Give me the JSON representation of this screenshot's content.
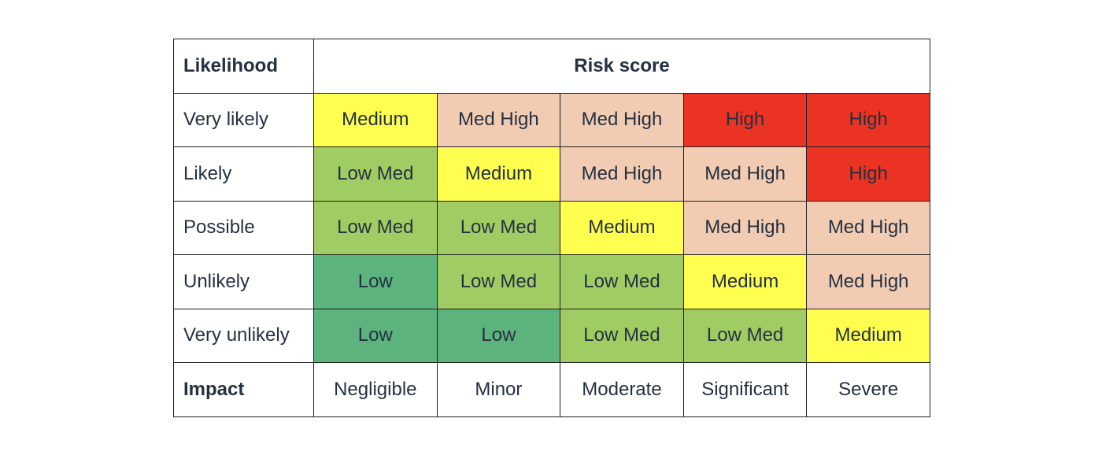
{
  "header": {
    "likelihood_label": "Likelihood",
    "risk_score_label": "Risk score"
  },
  "colors": {
    "Low": "#5db37e",
    "Low Med": "#a0cc63",
    "Medium": "#ffff4f",
    "Med High": "#f1ccb2",
    "High": "#eb3324"
  },
  "rows": [
    {
      "likelihood": "Very likely",
      "cells": [
        "Medium",
        "Med High",
        "Med High",
        "High",
        "High"
      ]
    },
    {
      "likelihood": "Likely",
      "cells": [
        "Low Med",
        "Medium",
        "Med High",
        "Med High",
        "High"
      ]
    },
    {
      "likelihood": "Possible",
      "cells": [
        "Low Med",
        "Low Med",
        "Medium",
        "Med High",
        "Med High"
      ]
    },
    {
      "likelihood": "Unlikely",
      "cells": [
        "Low",
        "Low Med",
        "Low Med",
        "Medium",
        "Med High"
      ]
    },
    {
      "likelihood": "Very unlikely",
      "cells": [
        "Low",
        "Low",
        "Low Med",
        "Low Med",
        "Medium"
      ]
    }
  ],
  "impact": {
    "label": "Impact",
    "levels": [
      "Negligible",
      "Minor",
      "Moderate",
      "Significant",
      "Severe"
    ]
  }
}
